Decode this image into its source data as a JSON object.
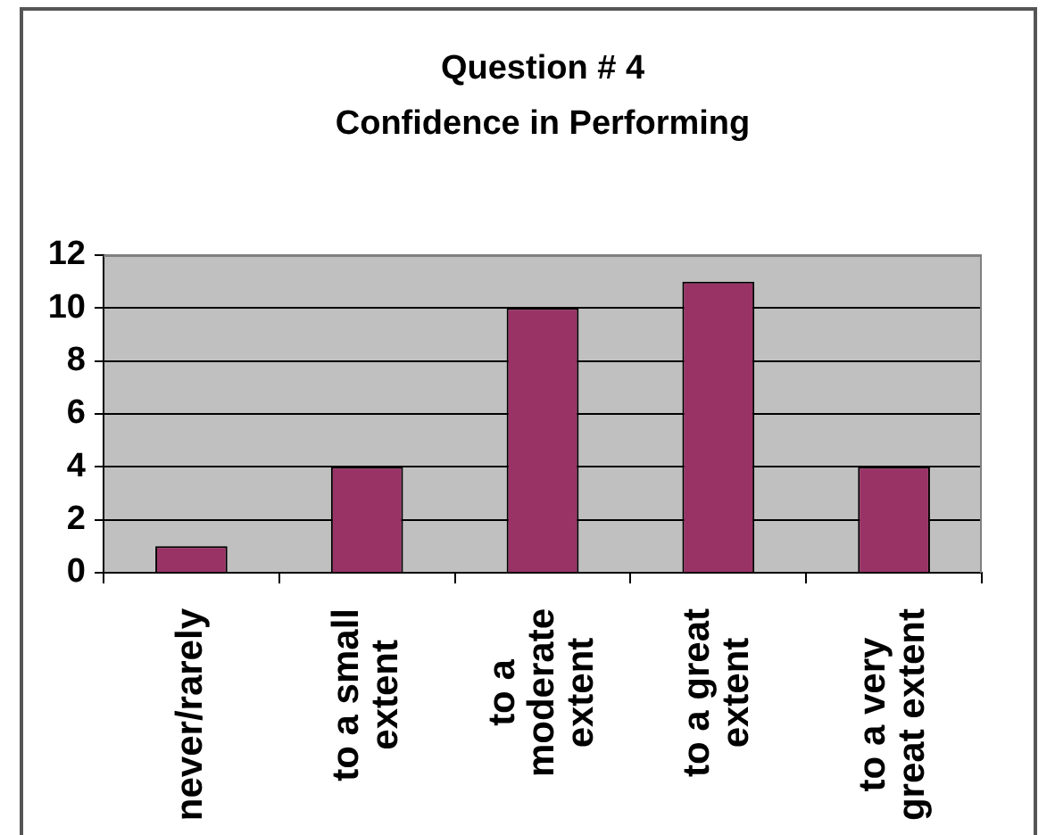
{
  "chart_data": {
    "type": "bar",
    "title": "Question # 4",
    "subtitle": "Confidence in Performing",
    "categories": [
      "never/rarely",
      "to a small extent",
      "to a moderate extent",
      "to a great extent",
      "to a very great extent"
    ],
    "values": [
      1,
      4,
      10,
      11,
      4
    ],
    "color": "#993366",
    "ylim": [
      0,
      12
    ],
    "yticks": [
      0,
      2,
      4,
      6,
      8,
      10,
      12
    ],
    "grid": "y"
  }
}
